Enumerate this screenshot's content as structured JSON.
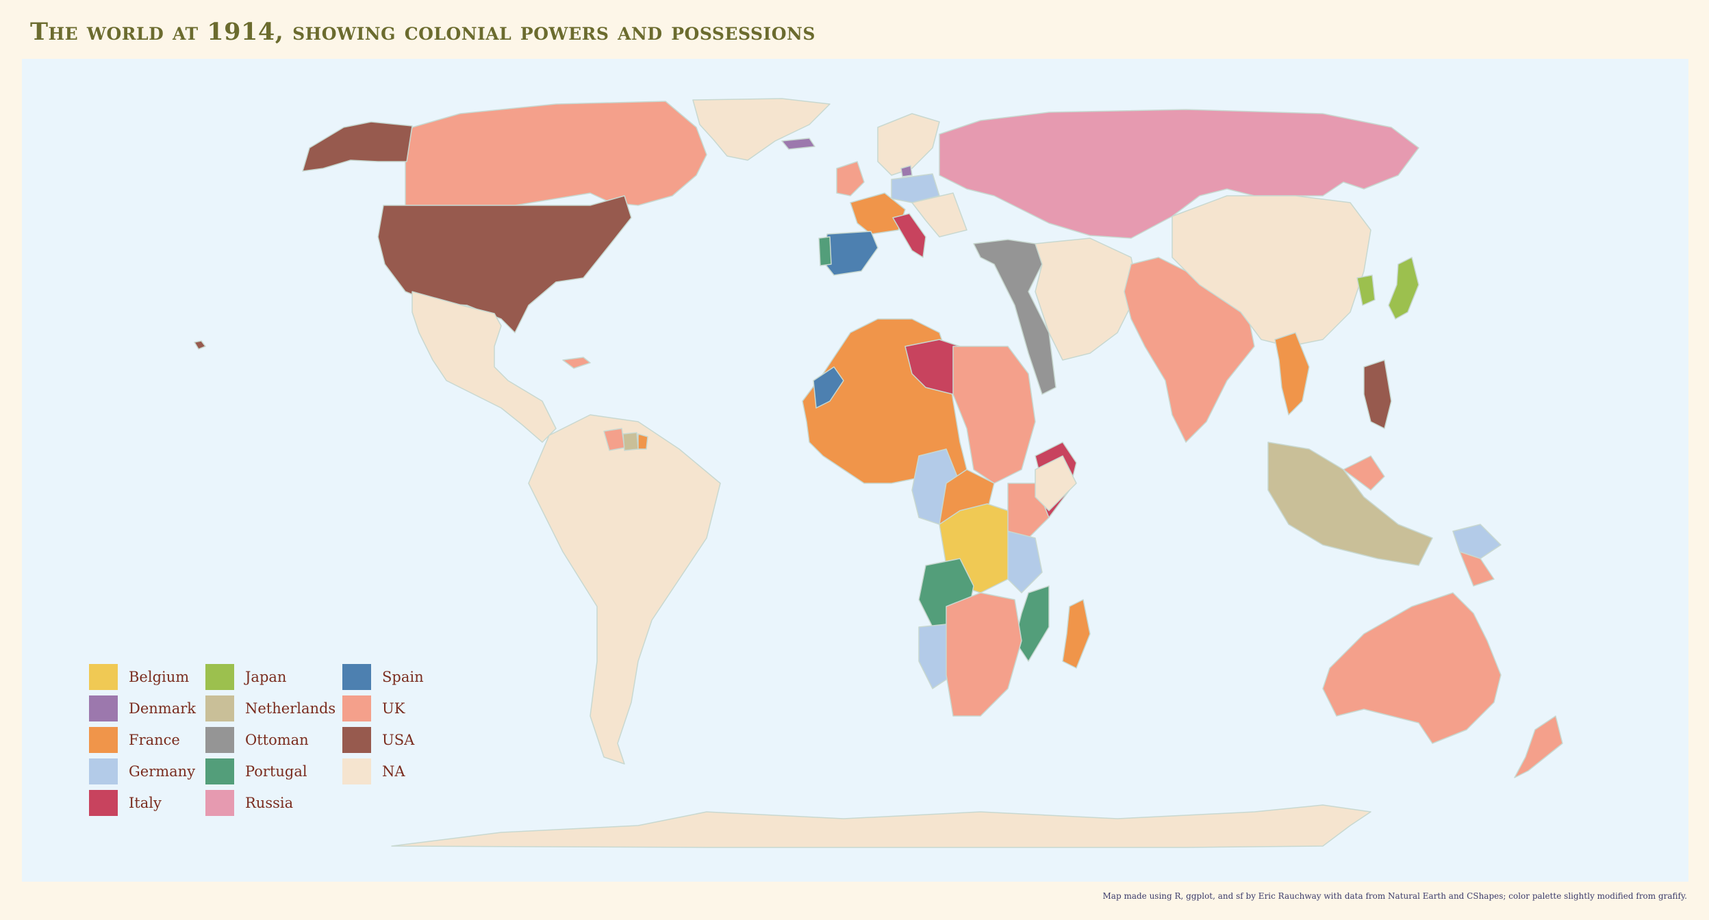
{
  "title": "The world at 1914, showing colonial powers and possessions",
  "caption": "Map made using R, ggplot, and sf by Eric Rauchway with data from Natural Earth and CShapes; color palette slightly modified from grafify.",
  "colors": {
    "Belgium": "#f0c954",
    "Denmark": "#9c78ad",
    "France": "#f0954a",
    "Germany": "#b3cbe8",
    "Italy": "#c8435e",
    "Japan": "#9cc04e",
    "Netherlands": "#c9bf98",
    "Ottoman": "#959595",
    "Portugal": "#539e7a",
    "Russia": "#e69ab0",
    "Spain": "#4d80b0",
    "UK": "#f4a08b",
    "USA": "#975a4e",
    "NA": "#f5e4cf",
    "ocean": "#eaf5fc",
    "border": "#c8d8d0"
  },
  "legend": [
    {
      "label": "Belgium",
      "key": "Belgium"
    },
    {
      "label": "Denmark",
      "key": "Denmark"
    },
    {
      "label": "France",
      "key": "France"
    },
    {
      "label": "Germany",
      "key": "Germany"
    },
    {
      "label": "Italy",
      "key": "Italy"
    },
    {
      "label": "Japan",
      "key": "Japan"
    },
    {
      "label": "Netherlands",
      "key": "Netherlands"
    },
    {
      "label": "Ottoman",
      "key": "Ottoman"
    },
    {
      "label": "Portugal",
      "key": "Portugal"
    },
    {
      "label": "Russia",
      "key": "Russia"
    },
    {
      "label": "Spain",
      "key": "Spain"
    },
    {
      "label": "UK",
      "key": "UK"
    },
    {
      "label": "USA",
      "key": "USA"
    },
    {
      "label": "NA",
      "key": "NA"
    }
  ]
}
